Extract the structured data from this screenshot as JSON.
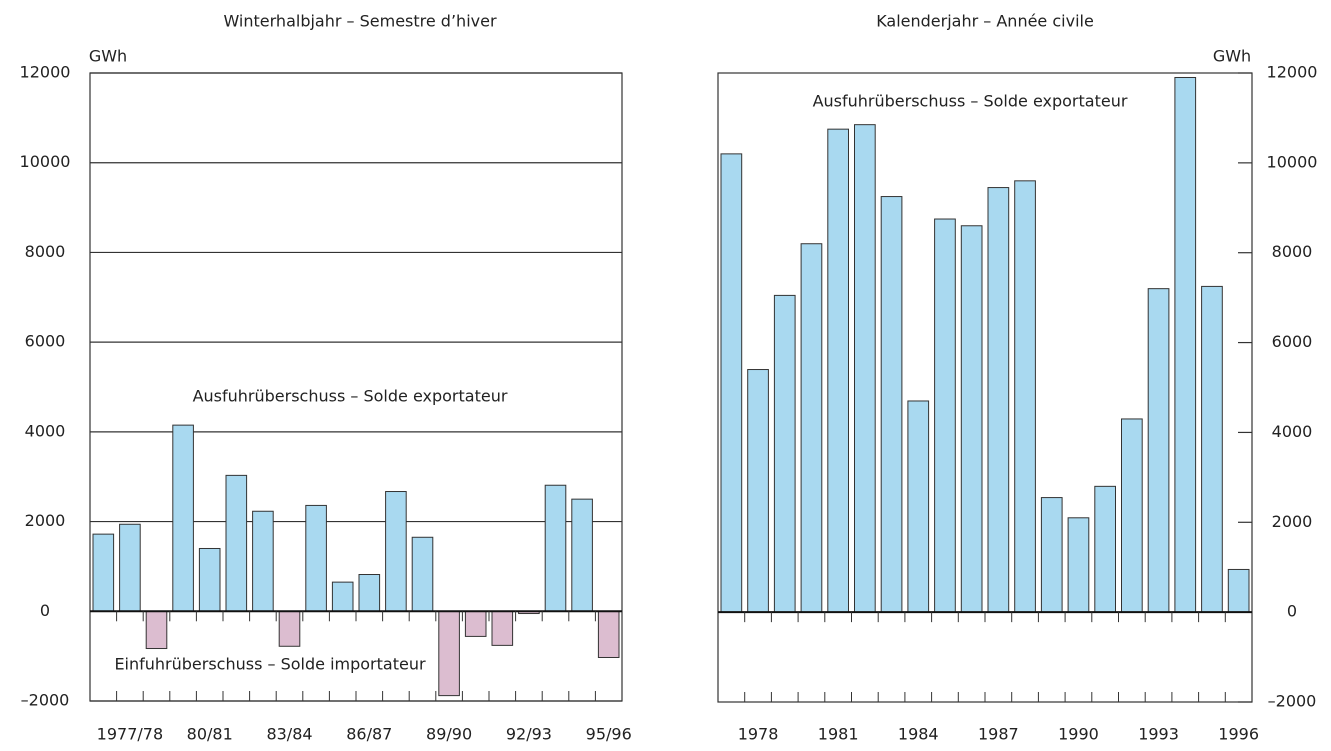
{
  "chart_data": [
    {
      "type": "bar",
      "title": "Winterhalbjahr – Semestre d’hiver",
      "y_label": "GWh",
      "y_axis_side": "left",
      "annotations": [
        "Ausfuhrüberschuss – Solde exportateur",
        "Einfuhrüberschuss – Solde importateur"
      ],
      "categories": [
        null,
        "1977/78",
        null,
        null,
        "80/81",
        null,
        null,
        "83/84",
        null,
        null,
        "86/87",
        null,
        null,
        "89/90",
        null,
        null,
        "92/93",
        null,
        null,
        "95/96"
      ],
      "values": [
        1720,
        1940,
        -830,
        4150,
        1400,
        3030,
        2230,
        -780,
        2360,
        650,
        820,
        2670,
        1650,
        -1880,
        -560,
        -760,
        -50,
        2810,
        2500,
        -1030
      ],
      "colors": {
        "positive": "#a9d9f0",
        "negative": "#dcbdd0"
      },
      "ylim": [
        -2000,
        12000
      ],
      "yticks": [
        {
          "value": -2000,
          "label": "–2000"
        },
        0,
        2000,
        4000,
        6000,
        8000,
        10000,
        12000
      ],
      "grid": true
    },
    {
      "type": "bar",
      "title": "Kalenderjahr – Année civile",
      "y_label": "GWh",
      "y_axis_side": "right",
      "annotations": [
        "Ausfuhrüberschuss – Solde exportateur"
      ],
      "categories": [
        null,
        "1978",
        null,
        null,
        "1981",
        null,
        null,
        "1984",
        null,
        null,
        "1987",
        null,
        null,
        "1990",
        null,
        null,
        "1993",
        null,
        null,
        "1996"
      ],
      "values": [
        10200,
        5400,
        7050,
        8200,
        10750,
        10850,
        9250,
        4700,
        8750,
        8600,
        9450,
        9600,
        2550,
        2100,
        2800,
        4300,
        7200,
        11900,
        7250,
        950
      ],
      "colors": {
        "positive": "#a9d9f0",
        "negative": "#dcbdd0"
      },
      "ylim": [
        -2000,
        12000
      ],
      "yticks": [
        {
          "value": -2000,
          "label": "–2000"
        },
        0,
        2000,
        4000,
        6000,
        8000,
        10000,
        12000
      ],
      "grid": false
    }
  ]
}
